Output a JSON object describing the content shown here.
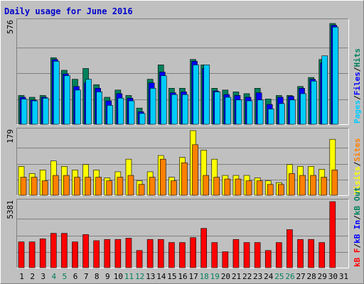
{
  "title": "Daily usage for June 2016",
  "colors": {
    "background": "#c0c0c0",
    "title": "#0000cc",
    "hits": "#00ccff",
    "files": "#0000ff",
    "pages": "#00805c",
    "visits": "#ffff00",
    "sites": "#ff8000",
    "kbin": "#0000ff",
    "kbout": "#00805c",
    "kbf": "#ff0000",
    "weekend_label": "#00805c",
    "weekday_label": "#000000"
  },
  "chart_data": [
    {
      "type": "bar",
      "panel": "hits",
      "ymax_label": "576",
      "ylim": [
        0,
        576
      ],
      "legend": [
        "Pages",
        "Files",
        "Hits"
      ],
      "categories": [
        "1",
        "2",
        "3",
        "4",
        "5",
        "6",
        "7",
        "8",
        "9",
        "10",
        "11",
        "12",
        "13",
        "14",
        "15",
        "16",
        "17",
        "18",
        "19",
        "20",
        "21",
        "22",
        "23",
        "24",
        "25",
        "26",
        "27",
        "28",
        "29",
        "30",
        "31"
      ],
      "weekend": [
        "4",
        "5",
        "11",
        "12",
        "18",
        "19",
        "25",
        "26"
      ],
      "series": [
        {
          "name": "Pages",
          "values": [
            160,
            150,
            160,
            370,
            300,
            250,
            310,
            220,
            150,
            190,
            160,
            90,
            250,
            330,
            200,
            200,
            360,
            330,
            200,
            190,
            180,
            170,
            200,
            140,
            160,
            160,
            210,
            260,
            360,
            560,
            0
          ]
        },
        {
          "name": "Files",
          "values": [
            150,
            135,
            150,
            360,
            280,
            210,
            230,
            200,
            130,
            170,
            145,
            70,
            230,
            290,
            175,
            180,
            350,
            310,
            185,
            165,
            160,
            150,
            175,
            110,
            150,
            155,
            200,
            250,
            340,
            550,
            0
          ]
        },
        {
          "name": "Hits",
          "values": [
            140,
            130,
            145,
            350,
            270,
            190,
            250,
            180,
            105,
            145,
            130,
            60,
            200,
            270,
            165,
            165,
            330,
            330,
            180,
            150,
            135,
            130,
            135,
            85,
            115,
            135,
            170,
            240,
            380,
            540,
            0
          ]
        }
      ]
    },
    {
      "type": "bar",
      "panel": "visits",
      "ymax_label": "179",
      "ylim": [
        0,
        179
      ],
      "legend": [
        "Visits",
        "Sites"
      ],
      "categories": [
        "1",
        "2",
        "3",
        "4",
        "5",
        "6",
        "7",
        "8",
        "9",
        "10",
        "11",
        "12",
        "13",
        "14",
        "15",
        "16",
        "17",
        "18",
        "19",
        "20",
        "21",
        "22",
        "23",
        "24",
        "25",
        "26",
        "27",
        "28",
        "29",
        "30",
        "31"
      ],
      "weekend": [
        "4",
        "5",
        "11",
        "12",
        "18",
        "19",
        "25",
        "26"
      ],
      "series": [
        {
          "name": "Visits",
          "values": [
            80,
            60,
            70,
            95,
            80,
            70,
            85,
            70,
            48,
            65,
            100,
            40,
            65,
            110,
            50,
            105,
            179,
            125,
            100,
            55,
            55,
            55,
            48,
            40,
            35,
            85,
            80,
            80,
            72,
            155,
            0
          ]
        },
        {
          "name": "Sites",
          "values": [
            50,
            50,
            40,
            55,
            55,
            50,
            50,
            50,
            40,
            50,
            55,
            30,
            50,
            100,
            40,
            90,
            140,
            55,
            50,
            45,
            45,
            40,
            40,
            30,
            30,
            60,
            55,
            55,
            50,
            70,
            0
          ]
        }
      ]
    },
    {
      "type": "bar",
      "panel": "kbytes",
      "ymax_label": "5381",
      "ylim": [
        0,
        5381
      ],
      "legend": [
        "kB F",
        "kB In",
        "kB Out"
      ],
      "categories": [
        "1",
        "2",
        "3",
        "4",
        "5",
        "6",
        "7",
        "8",
        "9",
        "10",
        "11",
        "12",
        "13",
        "14",
        "15",
        "16",
        "17",
        "18",
        "19",
        "20",
        "21",
        "22",
        "23",
        "24",
        "25",
        "26",
        "27",
        "28",
        "29",
        "30",
        "31"
      ],
      "weekend": [
        "4",
        "5",
        "11",
        "12",
        "18",
        "19",
        "25",
        "26"
      ],
      "series": [
        {
          "name": "kB F",
          "values": [
            2100,
            2100,
            2350,
            2800,
            2800,
            2100,
            2700,
            2200,
            2300,
            2300,
            2400,
            1400,
            2300,
            2300,
            2050,
            2050,
            2450,
            3200,
            2050,
            1300,
            2300,
            2050,
            2050,
            1400,
            2050,
            3100,
            2300,
            2300,
            2050,
            5381,
            0
          ]
        }
      ]
    }
  ]
}
